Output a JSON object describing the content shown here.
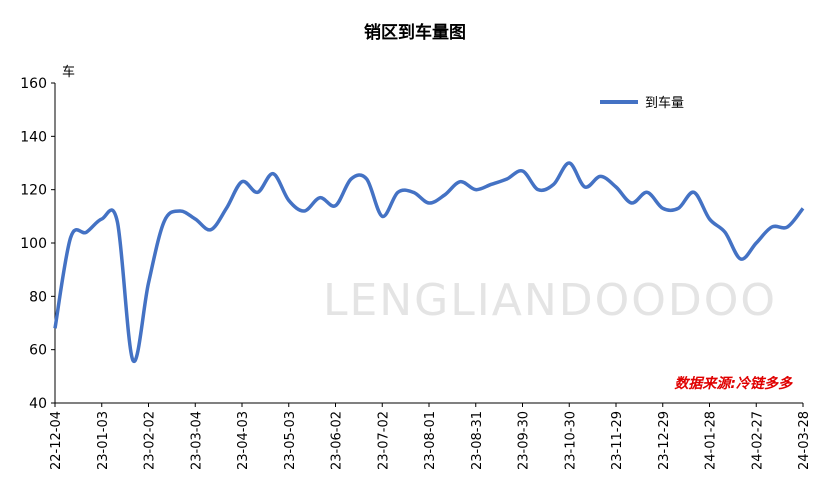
{
  "chart_data": {
    "type": "line",
    "title": "销区到车量图",
    "y_unit_label": "车",
    "annotation": "数据来源:冷链多多",
    "watermark": "LENGLIANDOODOO",
    "categories": [
      "22-12-04",
      null,
      null,
      "23-01-03",
      null,
      null,
      "23-02-02",
      null,
      null,
      "23-03-04",
      null,
      null,
      "23-04-03",
      null,
      null,
      "23-05-03",
      null,
      null,
      "23-06-02",
      null,
      null,
      "23-07-02",
      null,
      null,
      "23-08-01",
      null,
      null,
      "23-08-31",
      null,
      null,
      "23-09-30",
      null,
      null,
      "23-10-30",
      null,
      null,
      "23-11-29",
      null,
      null,
      "23-12-29",
      null,
      null,
      "24-01-28",
      null,
      null,
      "24-02-27",
      null,
      null,
      "24-03-28"
    ],
    "series": [
      {
        "name": "到车量",
        "color": "#4472c4",
        "values": [
          68,
          102,
          104,
          109,
          108,
          56,
          85,
          108,
          112,
          109,
          105,
          113,
          123,
          119,
          126,
          116,
          112,
          117,
          114,
          124,
          124,
          110,
          119,
          119,
          115,
          118,
          123,
          120,
          122,
          124,
          127,
          120,
          122,
          130,
          121,
          125,
          121,
          115,
          119,
          113,
          113,
          119,
          109,
          104,
          94,
          100,
          106,
          106,
          113
        ]
      }
    ],
    "ylim": [
      40,
      160
    ],
    "yticks": [
      40,
      60,
      80,
      100,
      120,
      140,
      160
    ],
    "grid": false,
    "legend": "top-right"
  }
}
